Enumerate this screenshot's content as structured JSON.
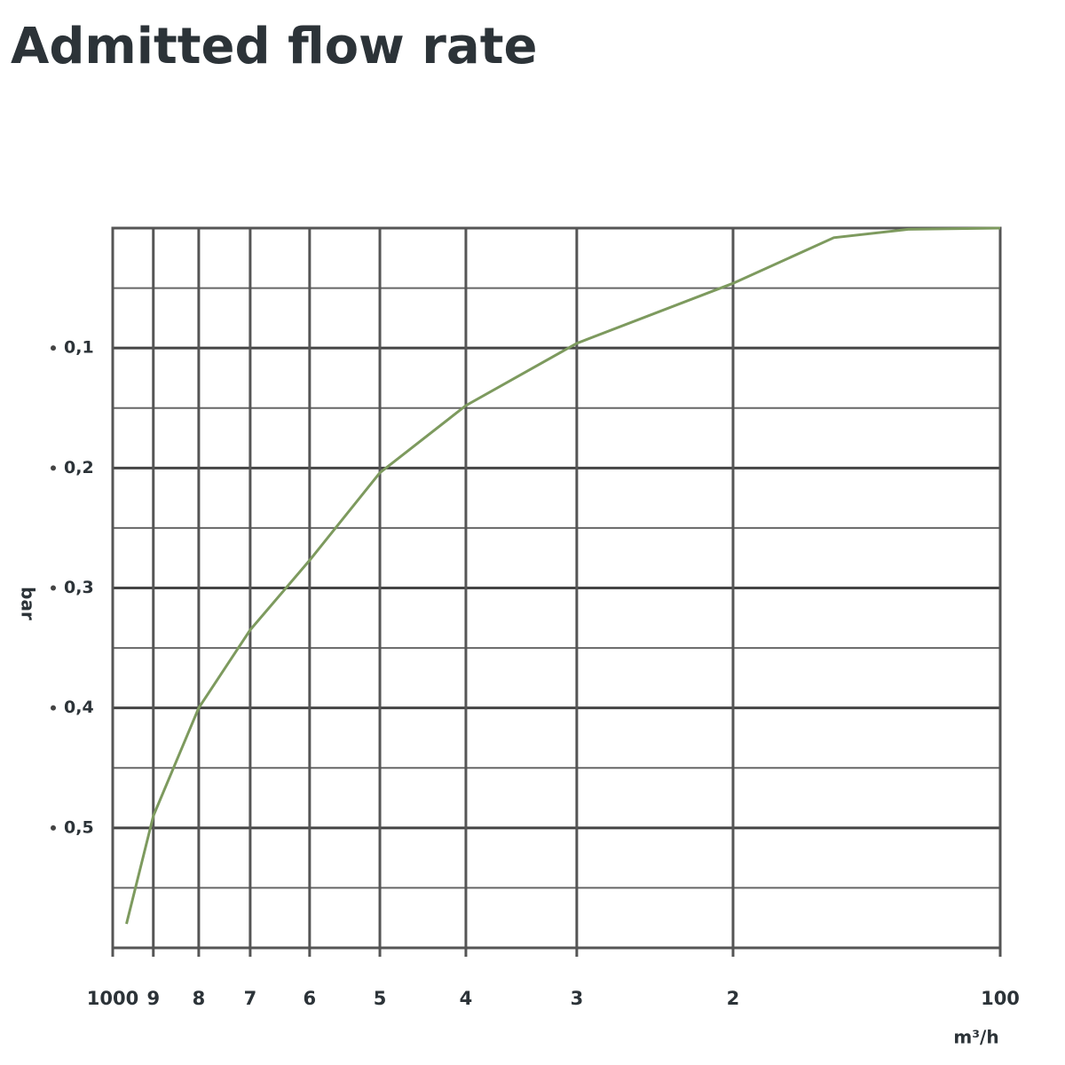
{
  "chart_data": {
    "type": "line",
    "title": "Admitted flow rate",
    "x_label": "m³/h",
    "y_label": "bar",
    "xscale": "log",
    "xlim": [
      1000,
      100
    ],
    "xticks": [
      1000,
      {
        "value": 900,
        "label": "9"
      },
      {
        "value": 800,
        "label": "8"
      },
      {
        "value": 700,
        "label": "7"
      },
      {
        "value": 600,
        "label": "6"
      },
      {
        "value": 500,
        "label": "5"
      },
      {
        "value": 400,
        "label": "4"
      },
      {
        "value": 300,
        "label": "3"
      },
      {
        "value": 200,
        "label": "2"
      },
      100
    ],
    "ylim": [
      0,
      0.6
    ],
    "yticks": [
      {
        "value": 0.1,
        "label": "0,1"
      },
      {
        "value": 0.2,
        "label": "0,2"
      },
      {
        "value": 0.3,
        "label": "0,3"
      },
      {
        "value": 0.4,
        "label": "0,4"
      },
      {
        "value": 0.5,
        "label": "0,5"
      }
    ],
    "minor_yticks": [
      0.05,
      0.15,
      0.25,
      0.35,
      0.45,
      0.55
    ],
    "grid": true,
    "x": [
      965,
      900,
      800,
      700,
      600,
      500,
      400,
      300,
      200,
      154,
      127,
      100
    ],
    "values": [
      0.58,
      0.49,
      0.4,
      0.335,
      0.277,
      0.204,
      0.148,
      0.096,
      0.046,
      0.008,
      0.001,
      0
    ],
    "color": "#7d9a5e"
  }
}
